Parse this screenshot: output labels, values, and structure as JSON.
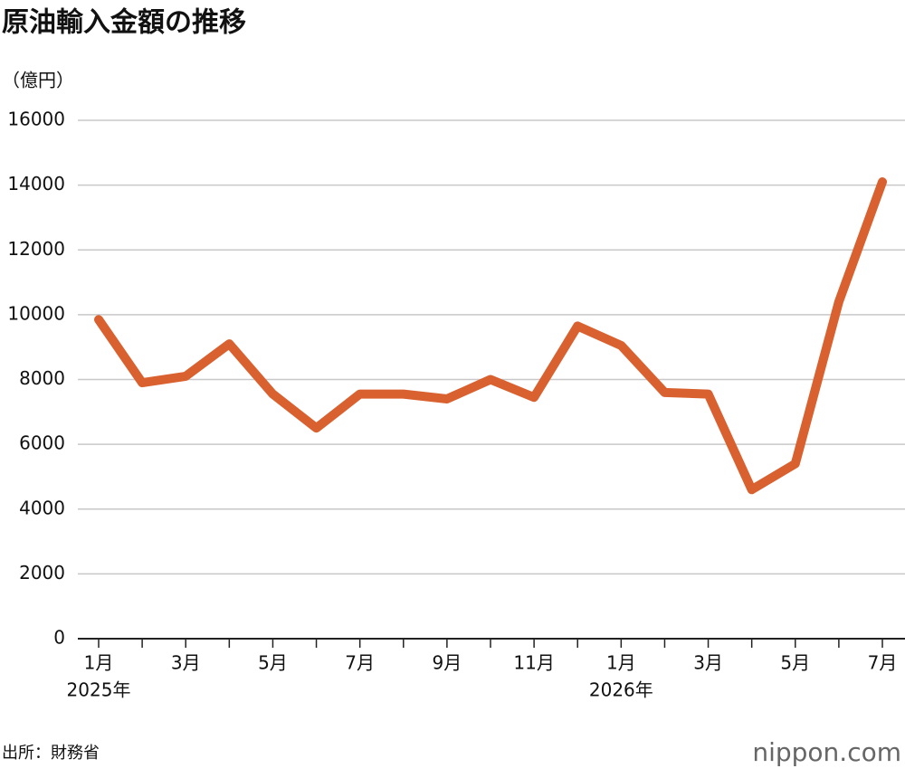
{
  "chart_data": {
    "type": "line",
    "title": "原油輸入金額の推移",
    "y_unit_label": "（億円）",
    "categories": [
      "1月",
      null,
      "3月",
      null,
      "5月",
      null,
      "7月",
      null,
      "9月",
      null,
      "11月",
      null,
      "1月",
      null,
      "3月",
      null,
      "5月",
      null,
      "7月"
    ],
    "year_labels": [
      "2025年",
      null,
      null,
      null,
      null,
      null,
      null,
      null,
      null,
      null,
      null,
      null,
      "2026年",
      null,
      null,
      null,
      null,
      null,
      null
    ],
    "series": [
      {
        "name": "原油輸入金額",
        "color": "#d9602f",
        "values": [
          9850,
          7900,
          8100,
          9100,
          7550,
          6500,
          7550,
          7550,
          7400,
          8000,
          7450,
          9650,
          9050,
          7600,
          7550,
          4600,
          5400,
          10400,
          14100
        ]
      }
    ],
    "ylim": [
      0,
      16000
    ],
    "yticks": [
      0,
      2000,
      4000,
      6000,
      8000,
      10000,
      12000,
      14000,
      16000
    ],
    "grid": true,
    "source": "出所：財務省",
    "logo": "nippon.com"
  }
}
